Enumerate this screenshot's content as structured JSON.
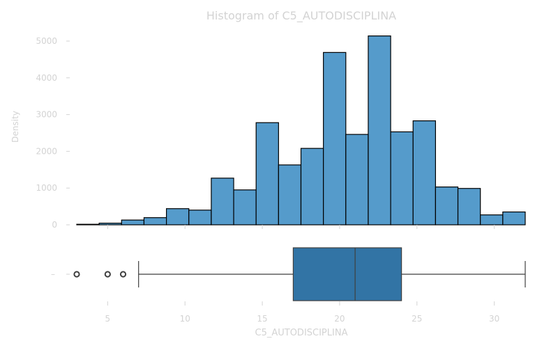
{
  "chart_data": {
    "type": "bar",
    "title": "Histogram of C5_AUTODISCIPLINA",
    "xlabel": "C5_AUTODISCIPLINA",
    "ylabel": "Density",
    "xlim": [
      2,
      32
    ],
    "ylim": [
      0,
      5400
    ],
    "grid": false,
    "colors": {
      "bar": "#559bcb",
      "bar_edge": "#000000",
      "box": "#3274a5",
      "text": "#d3d3d3"
    },
    "x_ticks": [
      5,
      10,
      15,
      20,
      25,
      30
    ],
    "x_tick_labels": [
      "5",
      "10",
      "15",
      "20",
      "25",
      "30"
    ],
    "y_ticks": [
      0,
      1000,
      2000,
      3000,
      4000,
      5000
    ],
    "y_tick_labels": [
      "0",
      "1000",
      "2000",
      "3000",
      "4000",
      "5000"
    ],
    "box_tick_label": "–",
    "bins": [
      {
        "x0": 3.0,
        "x1": 4.45,
        "count": 15
      },
      {
        "x0": 4.45,
        "x1": 5.9,
        "count": 45
      },
      {
        "x0": 5.9,
        "x1": 7.35,
        "count": 130
      },
      {
        "x0": 7.35,
        "x1": 8.8,
        "count": 195
      },
      {
        "x0": 8.8,
        "x1": 10.25,
        "count": 440
      },
      {
        "x0": 10.25,
        "x1": 11.7,
        "count": 400
      },
      {
        "x0": 11.7,
        "x1": 13.15,
        "count": 1270
      },
      {
        "x0": 13.15,
        "x1": 14.6,
        "count": 950
      },
      {
        "x0": 14.6,
        "x1": 16.05,
        "count": 2780
      },
      {
        "x0": 16.05,
        "x1": 17.5,
        "count": 1630
      },
      {
        "x0": 17.5,
        "x1": 18.95,
        "count": 2080
      },
      {
        "x0": 18.95,
        "x1": 20.4,
        "count": 4690
      },
      {
        "x0": 20.4,
        "x1": 21.85,
        "count": 2460
      },
      {
        "x0": 21.85,
        "x1": 23.3,
        "count": 5140
      },
      {
        "x0": 23.3,
        "x1": 24.75,
        "count": 2530
      },
      {
        "x0": 24.75,
        "x1": 26.2,
        "count": 2830
      },
      {
        "x0": 26.2,
        "x1": 27.65,
        "count": 1030
      },
      {
        "x0": 27.65,
        "x1": 29.1,
        "count": 990
      },
      {
        "x0": 29.1,
        "x1": 30.55,
        "count": 270
      },
      {
        "x0": 30.55,
        "x1": 32.0,
        "count": 350
      }
    ],
    "boxplot": {
      "whisker_low": 7,
      "q1": 17,
      "median": 21,
      "q3": 24,
      "whisker_high": 32,
      "outliers": [
        3,
        5,
        6
      ]
    }
  }
}
